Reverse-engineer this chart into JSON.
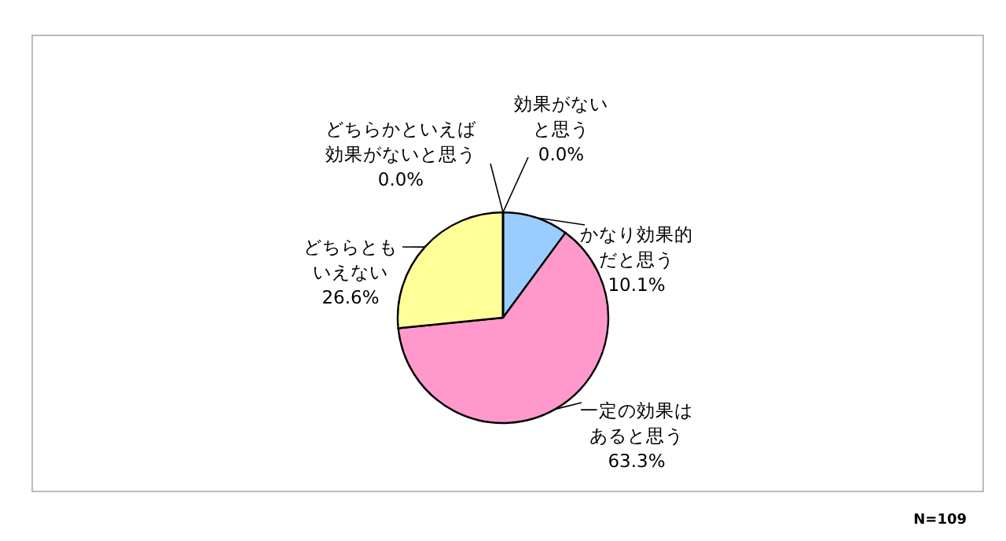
{
  "chart_data": {
    "type": "pie",
    "categories": [
      "かなり効果的だと思う",
      "一定の効果はあると思う",
      "どちらともいえない",
      "どちらかといえば効果がないと思う",
      "効果がないと思う"
    ],
    "values": [
      10.1,
      63.3,
      26.6,
      0.0,
      0.0
    ],
    "value_labels": [
      "10.1%",
      "63.3%",
      "26.6%",
      "0.0%",
      "0.0%"
    ],
    "colors": [
      "#99ccff",
      "#ff99cc",
      "#ffff99",
      "#ccffcc",
      "#cc99ff"
    ],
    "annotations": [
      "N=109"
    ]
  }
}
